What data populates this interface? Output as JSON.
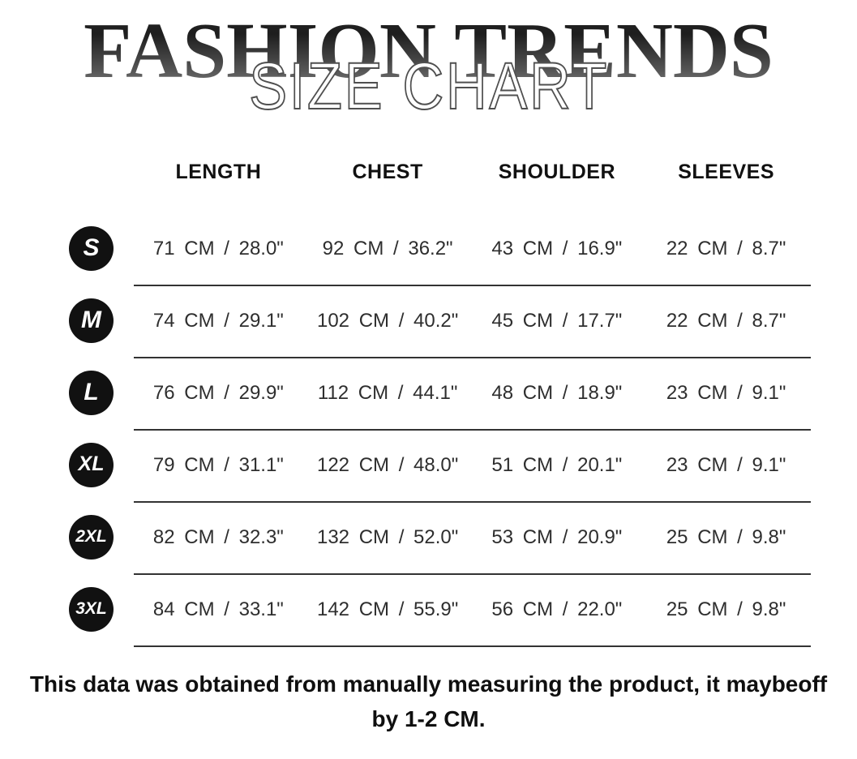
{
  "title": {
    "brand": "FASHION TRENDS",
    "subtitle": "SIZE CHART"
  },
  "table": {
    "columns": [
      "LENGTH",
      "CHEST",
      "SHOULDER",
      "SLEEVES"
    ],
    "rows": [
      {
        "size": "S",
        "cells": [
          "71 CM / 28.0\"",
          "92 CM / 36.2\"",
          "43 CM / 16.9\"",
          "22 CM / 8.7\""
        ]
      },
      {
        "size": "M",
        "cells": [
          "74 CM / 29.1\"",
          "102 CM / 40.2\"",
          "45 CM / 17.7\"",
          "22 CM / 8.7\""
        ]
      },
      {
        "size": "L",
        "cells": [
          "76 CM / 29.9\"",
          "112 CM / 44.1\"",
          "48 CM / 18.9\"",
          "23 CM / 9.1\""
        ]
      },
      {
        "size": "XL",
        "cells": [
          "79 CM / 31.1\"",
          "122 CM / 48.0\"",
          "51 CM / 20.1\"",
          "23 CM / 9.1\""
        ]
      },
      {
        "size": "2XL",
        "cells": [
          "82 CM / 32.3\"",
          "132 CM / 52.0\"",
          "53 CM / 20.9\"",
          "25 CM / 9.8\""
        ]
      },
      {
        "size": "3XL",
        "cells": [
          "84 CM / 33.1\"",
          "142 CM / 55.9\"",
          "56 CM / 22.0\"",
          "25 CM / 9.8\""
        ]
      }
    ]
  },
  "footer": {
    "lines": [
      "This data was obtained from manually measuring the product, it maybeoff",
      "by 1-2 CM."
    ]
  },
  "colors": {
    "badge_bg": "#111111",
    "divider": "#333333",
    "title_gradient_top": "#1e1e1e",
    "title_gradient_bottom": "#7a7a7a"
  }
}
